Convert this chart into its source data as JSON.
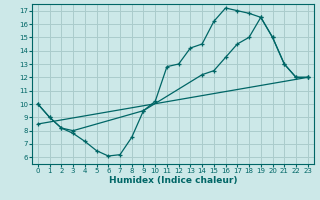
{
  "xlabel": "Humidex (Indice chaleur)",
  "bg_color": "#cce8e8",
  "grid_color": "#aacccc",
  "line_color": "#006666",
  "xlim": [
    -0.5,
    23.5
  ],
  "ylim": [
    5.5,
    17.5
  ],
  "xticks": [
    0,
    1,
    2,
    3,
    4,
    5,
    6,
    7,
    8,
    9,
    10,
    11,
    12,
    13,
    14,
    15,
    16,
    17,
    18,
    19,
    20,
    21,
    22,
    23
  ],
  "yticks": [
    6,
    7,
    8,
    9,
    10,
    11,
    12,
    13,
    14,
    15,
    16,
    17
  ],
  "line1_x": [
    0,
    1,
    2,
    3,
    4,
    5,
    6,
    7,
    8,
    9,
    10,
    11,
    12,
    13,
    14,
    15,
    16,
    17,
    18,
    19,
    20,
    21,
    22,
    23
  ],
  "line1_y": [
    10,
    9,
    8.2,
    7.8,
    7.2,
    6.5,
    6.1,
    6.2,
    7.5,
    9.5,
    10.2,
    12.8,
    13,
    14.2,
    14.5,
    16.2,
    17.2,
    17,
    16.8,
    16.5,
    15,
    13,
    12,
    12
  ],
  "line2_x": [
    0,
    1,
    2,
    3,
    9,
    14,
    15,
    16,
    17,
    18,
    19,
    20,
    21,
    22,
    23
  ],
  "line2_y": [
    10,
    9,
    8.2,
    8,
    9.5,
    12.2,
    12.5,
    13.5,
    14.5,
    15,
    16.5,
    15,
    13,
    12,
    12
  ],
  "line3_x": [
    0,
    23
  ],
  "line3_y": [
    8.5,
    12
  ]
}
